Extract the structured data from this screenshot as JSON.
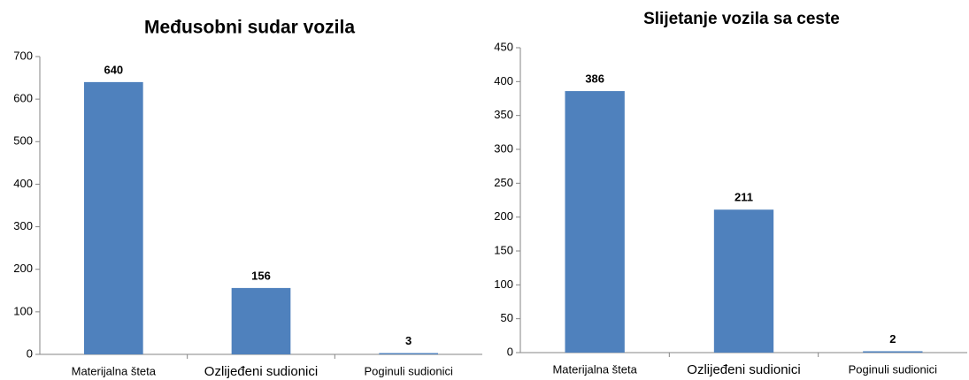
{
  "chart_data": [
    {
      "type": "bar",
      "title": "Međusobni sudar vozila",
      "categories": [
        "Materijalna šteta",
        "Ozlijeđeni sudionici",
        "Poginuli sudionici"
      ],
      "values": [
        640,
        156,
        3
      ],
      "color": "#4f81bd",
      "ylim": [
        0,
        700
      ],
      "yticks": [
        0,
        100,
        200,
        300,
        400,
        500,
        600,
        700
      ],
      "grid": false
    },
    {
      "type": "bar",
      "title": "Slijetanje vozila sa ceste",
      "categories": [
        "Materijalna šteta",
        "Ozlijeđeni sudionici",
        "Poginuli sudionici"
      ],
      "values": [
        386,
        211,
        2
      ],
      "color": "#4f81bd",
      "ylim": [
        0,
        450
      ],
      "yticks": [
        0,
        50,
        100,
        150,
        200,
        250,
        300,
        350,
        400,
        450
      ],
      "grid": false
    }
  ]
}
